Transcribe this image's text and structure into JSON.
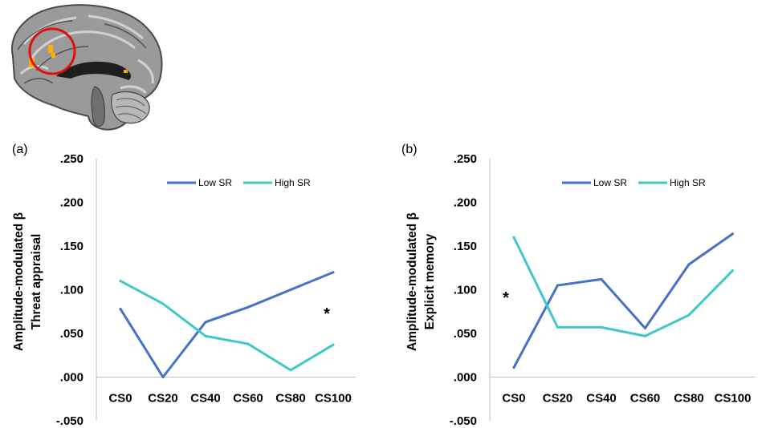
{
  "chart_data": [
    {
      "type": "line",
      "panel_label": "(a)",
      "ylabel": [
        "Amplitude-modulated β",
        "Threat appraisal"
      ],
      "categories": [
        "CS0",
        "CS20",
        "CS40",
        "CS60",
        "CS80",
        "CS100"
      ],
      "ylim": [
        -0.05,
        0.25
      ],
      "yticks": [
        ".250",
        ".200",
        ".150",
        ".100",
        ".050",
        ".000",
        "-.050"
      ],
      "ytick_values": [
        0.25,
        0.2,
        0.15,
        0.1,
        0.05,
        0.0,
        -0.05
      ],
      "legend_position": "top",
      "annotation": "*",
      "series": [
        {
          "name": "Low SR",
          "color": "#4472c4",
          "values": [
            0.078,
            0.0,
            0.063,
            0.08,
            0.1,
            0.12
          ]
        },
        {
          "name": "High SR",
          "color": "#40c8c8",
          "values": [
            0.11,
            0.084,
            0.047,
            0.038,
            0.008,
            0.037
          ]
        }
      ],
      "grid": false
    },
    {
      "type": "line",
      "panel_label": "(b)",
      "ylabel": [
        "Amplitude-modulated β",
        "Explicit memory"
      ],
      "categories": [
        "CS0",
        "CS20",
        "CS40",
        "CS60",
        "CS80",
        "CS100"
      ],
      "ylim": [
        -0.05,
        0.25
      ],
      "yticks": [
        ".250",
        ".200",
        ".150",
        ".100",
        ".050",
        ".000",
        "-.050"
      ],
      "ytick_values": [
        0.25,
        0.2,
        0.15,
        0.1,
        0.05,
        0.0,
        -0.05
      ],
      "legend_position": "top",
      "annotation": "*",
      "series": [
        {
          "name": "Low SR",
          "color": "#4472c4",
          "values": [
            0.011,
            0.105,
            0.112,
            0.056,
            0.129,
            0.164
          ]
        },
        {
          "name": "High SR",
          "color": "#40c8c8",
          "values": [
            0.16,
            0.057,
            0.057,
            0.047,
            0.071,
            0.122
          ]
        }
      ],
      "grid": false
    }
  ],
  "brain_image": {
    "icon": "brain-sagittal-slice-icon",
    "colors": {
      "tissue": "#8c8c8c",
      "highlight": "#ffb000",
      "circle": "#e01010"
    }
  }
}
